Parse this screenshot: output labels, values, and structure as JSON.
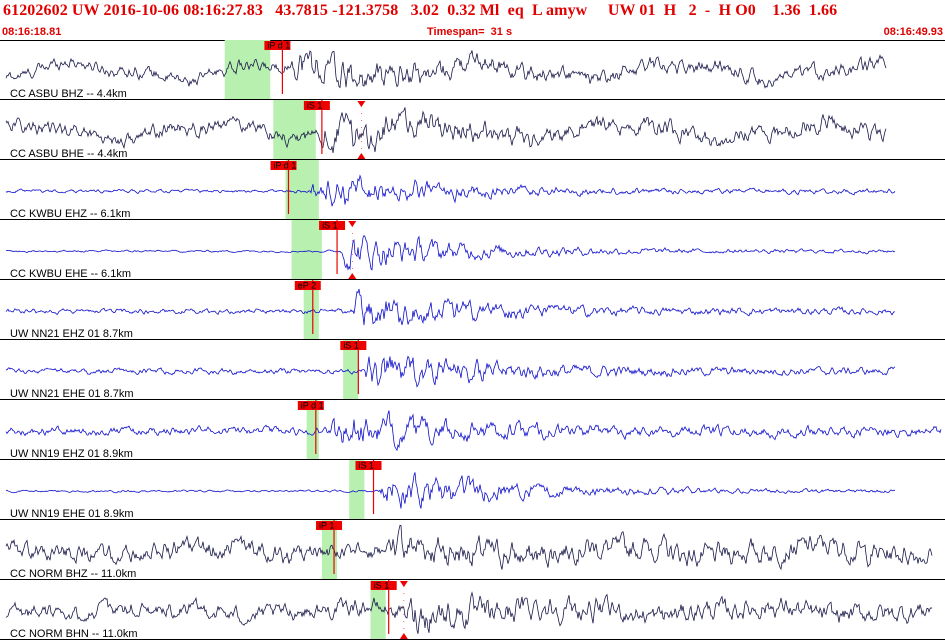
{
  "header": {
    "event_line": "61202602 UW 2016-10-06 08:16:27.83   43.7815 -121.3758   3.02  0.32 Ml  eq  L amyw     UW 01  H   2  -  H O0    1.36  1.66",
    "start_time": "08:16:18.81",
    "timespan": "Timespan=  31 s",
    "end_time": "08:16:49.93"
  },
  "colors": {
    "title_red": "#e00000",
    "pick_red": "#ee0000",
    "window_green": "#b8f0b0",
    "trace_dark": "#1a1a4a",
    "trace_blue": "#1010cc",
    "separator": "#000000"
  },
  "traces": [
    {
      "label": "CC ASBU BHZ -- 4.4km",
      "color": "dark",
      "pick": "iP d 1",
      "pick_time": 9.3,
      "green": [
        7.4,
        8.9
      ],
      "end_mark": false,
      "onset": 9.6,
      "noise": 0.3,
      "peak": 1.0,
      "lowfreq": 1.0,
      "stop": 29.2
    },
    {
      "label": "CC ASBU BHE -- 4.4km",
      "color": "dark",
      "pick": "iS 1",
      "pick_time": 10.6,
      "green": [
        9.0,
        10.4
      ],
      "end_mark": true,
      "end_time": 11.9,
      "onset": 10.6,
      "noise": 0.35,
      "peak": 1.0,
      "lowfreq": 0.9,
      "stop": 29.2
    },
    {
      "label": "CC KWBU EHZ -- 6.1km",
      "color": "blue",
      "pick": "iP d 1",
      "pick_time": 9.5,
      "green": [
        9.4,
        10.5
      ],
      "end_mark": false,
      "onset": 10.2,
      "noise": 0.08,
      "peak": 0.95,
      "lowfreq": 0.0,
      "stop": 29.5
    },
    {
      "label": "CC KWBU EHE -- 6.1km",
      "color": "blue",
      "pick": "iS 1",
      "pick_time": 11.1,
      "green": [
        9.6,
        10.6
      ],
      "end_mark": true,
      "end_time": 11.6,
      "onset": 11.2,
      "noise": 0.05,
      "peak": 0.95,
      "lowfreq": 0.0,
      "stop": 29.5
    },
    {
      "label": "UW NN21 EHZ 01 8.7km",
      "color": "blue",
      "pick": "eP 2",
      "pick_time": 10.3,
      "green": [
        10.0,
        10.5
      ],
      "end_mark": false,
      "onset": 11.5,
      "noise": 0.12,
      "peak": 0.9,
      "lowfreq": 0.0,
      "stop": 29.5
    },
    {
      "label": "UW NN21 EHE 01 8.7km",
      "color": "blue",
      "pick": "iS 1",
      "pick_time": 11.8,
      "green": [
        11.3,
        11.8
      ],
      "end_mark": false,
      "onset": 12.0,
      "noise": 0.14,
      "peak": 0.95,
      "lowfreq": 0.0,
      "stop": 29.5
    },
    {
      "label": "UW NN19 EHZ 01 8.9km",
      "color": "blue",
      "pick": "iP d 1",
      "pick_time": 10.4,
      "green": [
        10.1,
        10.5
      ],
      "end_mark": false,
      "onset": 10.8,
      "noise": 0.2,
      "peak": 0.95,
      "lowfreq": 0.0,
      "stop": 31.0
    },
    {
      "label": "UW NN19 EHE 01 8.9km",
      "color": "blue",
      "pick": "iS 1",
      "pick_time": 12.3,
      "green": [
        11.5,
        12.0
      ],
      "end_mark": false,
      "onset": 12.5,
      "noise": 0.05,
      "peak": 0.95,
      "lowfreq": 0.0,
      "stop": 29.5
    },
    {
      "label": "CC NORM BHZ -- 11.0km",
      "color": "dark",
      "pick": "iP 1",
      "pick_time": 11.0,
      "green": [
        10.6,
        11.1
      ],
      "end_mark": false,
      "onset": 12.9,
      "noise": 0.45,
      "peak": 0.95,
      "lowfreq": 0.6,
      "stop": 30.7
    },
    {
      "label": "CC NORM BHN -- 11.0km",
      "color": "dark",
      "pick": "iS 1",
      "pick_time": 12.8,
      "green": [
        12.2,
        12.7
      ],
      "end_mark": true,
      "end_time": 13.3,
      "onset": 13.3,
      "noise": 0.4,
      "peak": 0.95,
      "lowfreq": 0.5,
      "stop": 30.7
    }
  ]
}
